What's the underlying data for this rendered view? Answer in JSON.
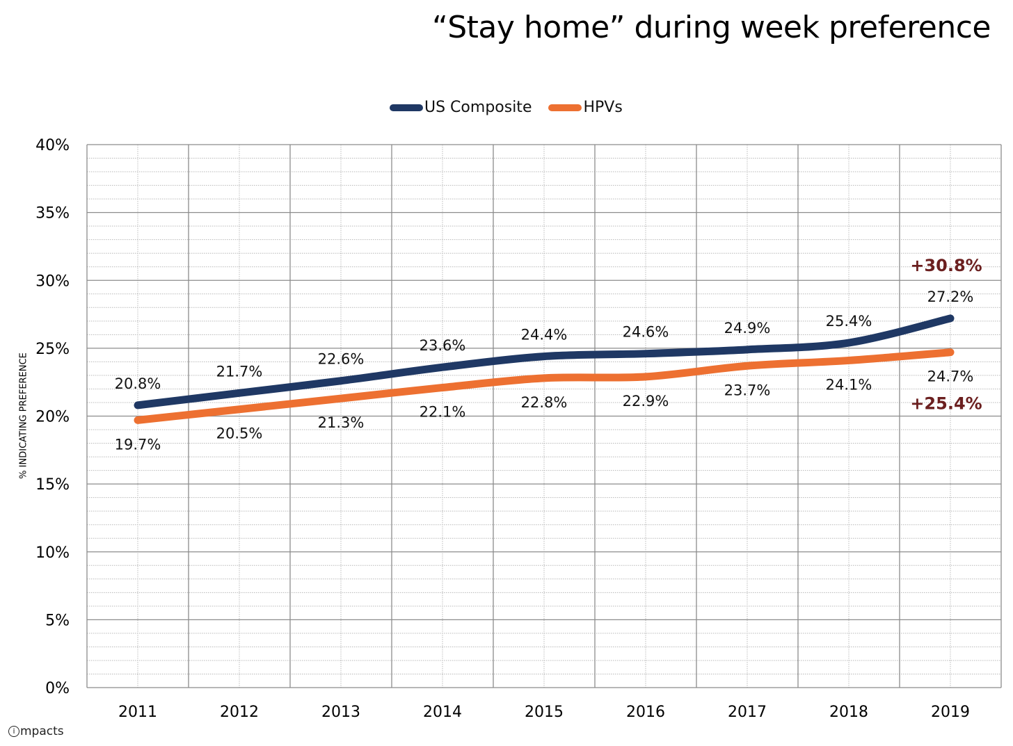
{
  "chart_data": {
    "type": "line",
    "title": "“Stay home” during week preference",
    "xlabel": "",
    "ylabel": "% INDICATING PREFERENCE",
    "categories": [
      "2011",
      "2012",
      "2013",
      "2014",
      "2015",
      "2016",
      "2017",
      "2018",
      "2019"
    ],
    "ylim": [
      0,
      40
    ],
    "yticks": [
      0,
      5,
      10,
      15,
      20,
      25,
      30,
      35,
      40
    ],
    "ytick_labels": [
      "0%",
      "5%",
      "10%",
      "15%",
      "20%",
      "25%",
      "30%",
      "35%",
      "40%"
    ],
    "grid": true,
    "legend_position": "top-center",
    "series": [
      {
        "name": "US Composite",
        "color": "#1f3864",
        "values": [
          20.8,
          21.7,
          22.6,
          23.6,
          24.4,
          24.6,
          24.9,
          25.4,
          27.2
        ],
        "labels": [
          "20.8%",
          "21.7%",
          "22.6%",
          "23.6%",
          "24.4%",
          "24.6%",
          "24.9%",
          "25.4%",
          "27.2%"
        ],
        "label_position": "above"
      },
      {
        "name": "HPVs",
        "color": "#ed7031",
        "values": [
          19.7,
          20.5,
          21.3,
          22.1,
          22.8,
          22.9,
          23.7,
          24.1,
          24.7
        ],
        "labels": [
          "19.7%",
          "20.5%",
          "21.3%",
          "22.1%",
          "22.8%",
          "22.9%",
          "23.7%",
          "24.1%",
          "24.7%"
        ],
        "label_position": "below"
      }
    ],
    "annotations": [
      {
        "text": "+30.8%",
        "series": "US Composite",
        "category": "2019",
        "color": "#6b1f1f"
      },
      {
        "text": "+25.4%",
        "series": "HPVs",
        "category": "2019",
        "color": "#6b1f1f"
      }
    ]
  },
  "logo": {
    "circle_letter": "i",
    "text": "mpacts"
  }
}
